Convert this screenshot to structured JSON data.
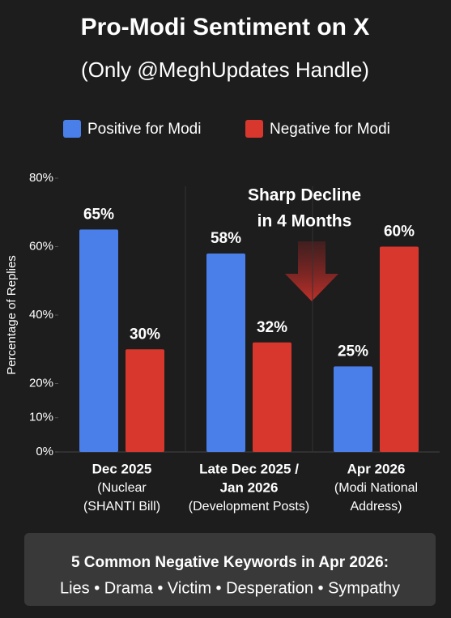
{
  "chart_data": {
    "type": "bar",
    "title": "Pro-Modi Sentiment on X",
    "subtitle": "(Only @MeghUpdates Handle)",
    "y_label": "Percentage of Replies",
    "categories": [
      [
        "Dec 2025"
      ],
      [
        "Late Dec 2025 /",
        "Jan 2026"
      ],
      [
        "Apr 2026"
      ]
    ],
    "category_details": [
      [
        "(Nuclear",
        "(SHANTI Bill)"
      ],
      [
        "(Development Posts)"
      ],
      [
        "(Modi National",
        "Address)"
      ]
    ],
    "series": [
      {
        "name": "Positive for Modi",
        "color": "#4a7ee8",
        "values": [
          65,
          58,
          25
        ],
        "value_labels": [
          "65%",
          "58%",
          "25%"
        ]
      },
      {
        "name": "Negative for Modi",
        "color": "#d8372d",
        "values": [
          30,
          32,
          60
        ],
        "value_labels": [
          "30%",
          "32%",
          "60%"
        ]
      }
    ],
    "ylim": [
      0,
      80
    ],
    "yticks": [
      {
        "value": 0,
        "label": "0%"
      },
      {
        "value": 10,
        "label": "10%"
      },
      {
        "value": 20,
        "label": "20%"
      },
      {
        "value": 40,
        "label": "40%"
      },
      {
        "value": 60,
        "label": "60%"
      },
      {
        "value": 80,
        "label": "80%"
      }
    ],
    "annotation": [
      "Sharp Decline",
      "in 4 Months"
    ],
    "footer": {
      "title": "5 Common Negative Keywords in Apr 2026:",
      "text": "Lies • Drama • Victim • Desperation • Sympathy"
    }
  }
}
